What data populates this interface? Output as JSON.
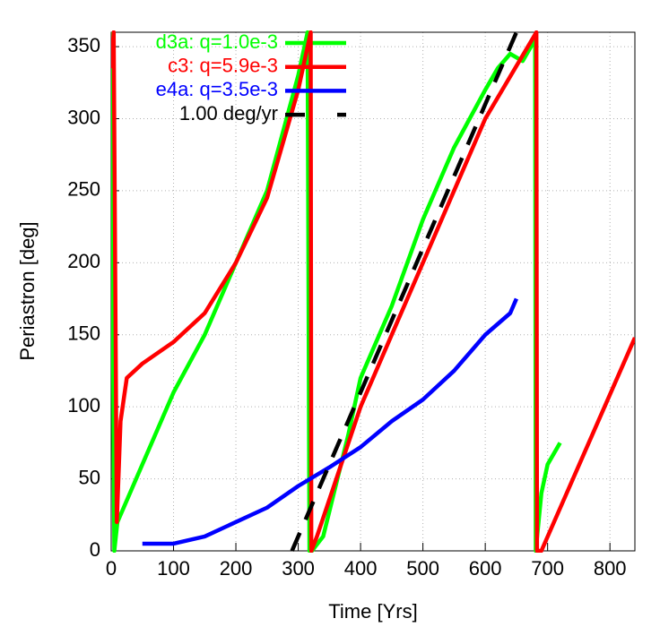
{
  "chart_data": {
    "type": "line",
    "xlabel": "Time [Yrs]",
    "ylabel": "Periastron [deg]",
    "xlim": [
      0,
      840
    ],
    "ylim": [
      0,
      360
    ],
    "xticks": [
      0,
      100,
      200,
      300,
      400,
      500,
      600,
      700,
      800
    ],
    "yticks": [
      0,
      50,
      100,
      150,
      200,
      250,
      300,
      350
    ],
    "grid": true,
    "legend": "top-left",
    "series": [
      {
        "name": "d3a: q=1.0e-3",
        "color": "#00ff00",
        "x": [
          0,
          5,
          10,
          50,
          100,
          150,
          200,
          250,
          300,
          315,
          318,
          322,
          340,
          380,
          400,
          450,
          500,
          550,
          600,
          620,
          640,
          660,
          680,
          681,
          690,
          700,
          720
        ],
        "values": [
          360,
          0,
          20,
          60,
          110,
          150,
          200,
          250,
          330,
          360,
          0,
          0,
          10,
          80,
          120,
          170,
          230,
          280,
          320,
          335,
          345,
          340,
          355,
          0,
          40,
          60,
          75
        ]
      },
      {
        "name": "c3: q=5.9e-3",
        "color": "#ff0000",
        "x": [
          0,
          4,
          9,
          15,
          25,
          50,
          100,
          150,
          200,
          250,
          300,
          320,
          321,
          330,
          400,
          500,
          600,
          682,
          683,
          690,
          840
        ],
        "values": [
          335,
          360,
          20,
          90,
          120,
          130,
          145,
          165,
          200,
          245,
          320,
          360,
          0,
          10,
          100,
          200,
          300,
          360,
          0,
          0,
          148
        ]
      },
      {
        "name": "e4a: q=3.5e-3",
        "color": "#0000ff",
        "x": [
          50,
          100,
          150,
          200,
          250,
          300,
          350,
          400,
          450,
          500,
          550,
          600,
          640,
          650
        ],
        "values": [
          5,
          5,
          10,
          20,
          30,
          45,
          58,
          72,
          90,
          105,
          125,
          150,
          165,
          175
        ]
      },
      {
        "name": "1.00 deg/yr",
        "color": "#000000",
        "dash": true,
        "x": [
          290,
          650
        ],
        "values": [
          0,
          360
        ]
      }
    ]
  }
}
